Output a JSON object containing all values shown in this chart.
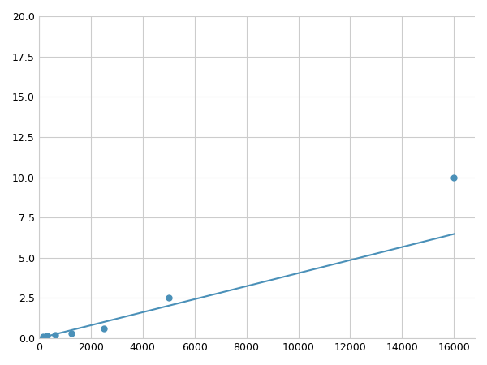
{
  "x": [
    156,
    312,
    625,
    1250,
    2500,
    5000,
    16000
  ],
  "y": [
    0.1,
    0.15,
    0.2,
    0.3,
    0.6,
    2.5,
    10.0
  ],
  "line_color": "#4a90b8",
  "marker_color": "#4a90b8",
  "marker_size": 5,
  "xlim": [
    0,
    16800
  ],
  "ylim": [
    0,
    20
  ],
  "xticks": [
    0,
    2000,
    4000,
    6000,
    8000,
    10000,
    12000,
    14000,
    16000
  ],
  "yticks": [
    0.0,
    2.5,
    5.0,
    7.5,
    10.0,
    12.5,
    15.0,
    17.5,
    20.0
  ],
  "grid": true,
  "background_color": "#ffffff",
  "figure_width": 6.0,
  "figure_height": 4.5,
  "dpi": 100
}
